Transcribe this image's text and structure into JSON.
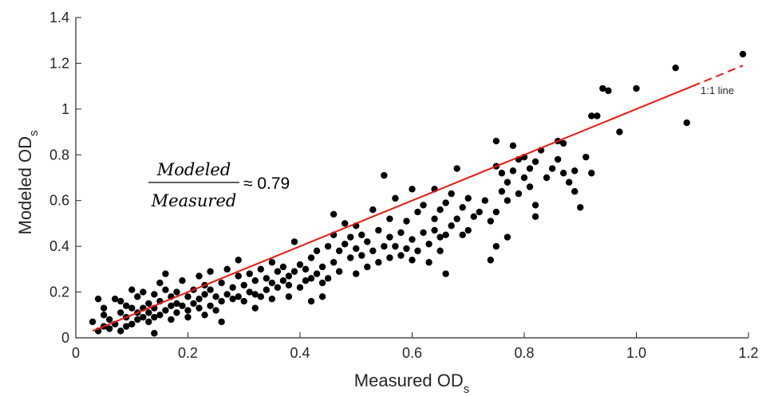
{
  "chart_data": {
    "type": "scatter",
    "xlabel": "Measured OD",
    "xlabel_subscript": "s",
    "ylabel": "Modeled OD",
    "ylabel_subscript": "s",
    "xlim": [
      0,
      1.2
    ],
    "ylim": [
      0,
      1.4
    ],
    "x_ticks": [
      0,
      0.2,
      0.4,
      0.6,
      0.8,
      1.0,
      1.2
    ],
    "x_tick_labels": [
      "0",
      "0.2",
      "0.4",
      "0.6",
      "0.8",
      "1.0",
      "1.2"
    ],
    "y_ticks": [
      0,
      0.2,
      0.4,
      0.6,
      0.8,
      1.0,
      1.2,
      1.4
    ],
    "y_tick_labels": [
      "0",
      "0.2",
      "0.4",
      "0.6",
      "0.8",
      "1",
      "1.2",
      "1.4"
    ],
    "grid": false,
    "marker_color": "#000000",
    "fit_line": {
      "label": "1:1 line",
      "color": "#e8190f",
      "solid_x": [
        0.03,
        1.1
      ],
      "dashed_x": [
        1.1,
        1.19
      ],
      "slope": 1.0,
      "intercept": 0.0
    },
    "annotation": {
      "numerator": "Modeled",
      "denominator": "Measured",
      "relation": "≈ 0.79"
    },
    "points": [
      [
        0.03,
        0.07
      ],
      [
        0.04,
        0.03
      ],
      [
        0.04,
        0.17
      ],
      [
        0.05,
        0.05
      ],
      [
        0.05,
        0.1
      ],
      [
        0.05,
        0.13
      ],
      [
        0.06,
        0.04
      ],
      [
        0.06,
        0.08
      ],
      [
        0.07,
        0.06
      ],
      [
        0.07,
        0.17
      ],
      [
        0.08,
        0.03
      ],
      [
        0.08,
        0.11
      ],
      [
        0.08,
        0.16
      ],
      [
        0.09,
        0.05
      ],
      [
        0.09,
        0.09
      ],
      [
        0.09,
        0.14
      ],
      [
        0.1,
        0.06
      ],
      [
        0.1,
        0.13
      ],
      [
        0.1,
        0.21
      ],
      [
        0.11,
        0.08
      ],
      [
        0.11,
        0.11
      ],
      [
        0.11,
        0.18
      ],
      [
        0.12,
        0.13
      ],
      [
        0.12,
        0.2
      ],
      [
        0.12,
        0.09
      ],
      [
        0.13,
        0.07
      ],
      [
        0.13,
        0.15
      ],
      [
        0.13,
        0.11
      ],
      [
        0.14,
        0.02
      ],
      [
        0.14,
        0.09
      ],
      [
        0.14,
        0.13
      ],
      [
        0.14,
        0.19
      ],
      [
        0.15,
        0.1
      ],
      [
        0.15,
        0.16
      ],
      [
        0.15,
        0.24
      ],
      [
        0.16,
        0.12
      ],
      [
        0.16,
        0.21
      ],
      [
        0.16,
        0.28
      ],
      [
        0.17,
        0.08
      ],
      [
        0.17,
        0.14
      ],
      [
        0.17,
        0.18
      ],
      [
        0.18,
        0.11
      ],
      [
        0.18,
        0.15
      ],
      [
        0.18,
        0.2
      ],
      [
        0.19,
        0.14
      ],
      [
        0.19,
        0.25
      ],
      [
        0.2,
        0.09
      ],
      [
        0.2,
        0.12
      ],
      [
        0.2,
        0.18
      ],
      [
        0.21,
        0.15
      ],
      [
        0.21,
        0.21
      ],
      [
        0.22,
        0.13
      ],
      [
        0.22,
        0.17
      ],
      [
        0.22,
        0.27
      ],
      [
        0.23,
        0.1
      ],
      [
        0.23,
        0.19
      ],
      [
        0.23,
        0.23
      ],
      [
        0.24,
        0.14
      ],
      [
        0.24,
        0.21
      ],
      [
        0.24,
        0.29
      ],
      [
        0.25,
        0.12
      ],
      [
        0.25,
        0.18
      ],
      [
        0.26,
        0.07
      ],
      [
        0.26,
        0.16
      ],
      [
        0.26,
        0.24
      ],
      [
        0.27,
        0.19
      ],
      [
        0.27,
        0.3
      ],
      [
        0.28,
        0.17
      ],
      [
        0.28,
        0.22
      ],
      [
        0.29,
        0.18
      ],
      [
        0.29,
        0.27
      ],
      [
        0.29,
        0.34
      ],
      [
        0.3,
        0.16
      ],
      [
        0.3,
        0.23
      ],
      [
        0.31,
        0.2
      ],
      [
        0.31,
        0.28
      ],
      [
        0.32,
        0.13
      ],
      [
        0.32,
        0.19
      ],
      [
        0.32,
        0.25
      ],
      [
        0.33,
        0.18
      ],
      [
        0.33,
        0.3
      ],
      [
        0.34,
        0.21
      ],
      [
        0.34,
        0.26
      ],
      [
        0.35,
        0.17
      ],
      [
        0.35,
        0.24
      ],
      [
        0.35,
        0.33
      ],
      [
        0.36,
        0.22
      ],
      [
        0.36,
        0.29
      ],
      [
        0.37,
        0.25
      ],
      [
        0.37,
        0.31
      ],
      [
        0.38,
        0.18
      ],
      [
        0.38,
        0.23
      ],
      [
        0.38,
        0.27
      ],
      [
        0.39,
        0.29
      ],
      [
        0.39,
        0.42
      ],
      [
        0.4,
        0.22
      ],
      [
        0.4,
        0.32
      ],
      [
        0.41,
        0.25
      ],
      [
        0.41,
        0.3
      ],
      [
        0.42,
        0.16
      ],
      [
        0.42,
        0.26
      ],
      [
        0.42,
        0.35
      ],
      [
        0.43,
        0.28
      ],
      [
        0.43,
        0.38
      ],
      [
        0.44,
        0.18
      ],
      [
        0.44,
        0.24
      ],
      [
        0.44,
        0.31
      ],
      [
        0.45,
        0.26
      ],
      [
        0.45,
        0.4
      ],
      [
        0.46,
        0.33
      ],
      [
        0.46,
        0.45
      ],
      [
        0.46,
        0.54
      ],
      [
        0.47,
        0.29
      ],
      [
        0.47,
        0.38
      ],
      [
        0.48,
        0.41
      ],
      [
        0.48,
        0.5
      ],
      [
        0.49,
        0.35
      ],
      [
        0.49,
        0.44
      ],
      [
        0.5,
        0.28
      ],
      [
        0.5,
        0.39
      ],
      [
        0.5,
        0.49
      ],
      [
        0.51,
        0.36
      ],
      [
        0.51,
        0.45
      ],
      [
        0.52,
        0.31
      ],
      [
        0.52,
        0.42
      ],
      [
        0.53,
        0.38
      ],
      [
        0.53,
        0.56
      ],
      [
        0.54,
        0.33
      ],
      [
        0.54,
        0.47
      ],
      [
        0.55,
        0.4
      ],
      [
        0.55,
        0.71
      ],
      [
        0.56,
        0.35
      ],
      [
        0.56,
        0.44
      ],
      [
        0.56,
        0.52
      ],
      [
        0.57,
        0.4
      ],
      [
        0.57,
        0.61
      ],
      [
        0.58,
        0.36
      ],
      [
        0.58,
        0.46
      ],
      [
        0.59,
        0.39
      ],
      [
        0.59,
        0.51
      ],
      [
        0.6,
        0.34
      ],
      [
        0.6,
        0.43
      ],
      [
        0.6,
        0.65
      ],
      [
        0.61,
        0.38
      ],
      [
        0.61,
        0.55
      ],
      [
        0.62,
        0.46
      ],
      [
        0.62,
        0.58
      ],
      [
        0.63,
        0.41
      ],
      [
        0.63,
        0.33
      ],
      [
        0.64,
        0.47
      ],
      [
        0.64,
        0.52
      ],
      [
        0.64,
        0.65
      ],
      [
        0.65,
        0.38
      ],
      [
        0.65,
        0.44
      ],
      [
        0.65,
        0.56
      ],
      [
        0.66,
        0.28
      ],
      [
        0.66,
        0.45
      ],
      [
        0.66,
        0.59
      ],
      [
        0.67,
        0.49
      ],
      [
        0.67,
        0.63
      ],
      [
        0.68,
        0.52
      ],
      [
        0.68,
        0.74
      ],
      [
        0.69,
        0.45
      ],
      [
        0.69,
        0.57
      ],
      [
        0.7,
        0.47
      ],
      [
        0.7,
        0.61
      ],
      [
        0.71,
        0.53
      ],
      [
        0.72,
        0.55
      ],
      [
        0.73,
        0.6
      ],
      [
        0.74,
        0.34
      ],
      [
        0.74,
        0.51
      ],
      [
        0.75,
        0.4
      ],
      [
        0.75,
        0.55
      ],
      [
        0.75,
        0.75
      ],
      [
        0.75,
        0.86
      ],
      [
        0.76,
        0.64
      ],
      [
        0.76,
        0.72
      ],
      [
        0.77,
        0.44
      ],
      [
        0.77,
        0.6
      ],
      [
        0.77,
        0.68
      ],
      [
        0.78,
        0.73
      ],
      [
        0.78,
        0.84
      ],
      [
        0.79,
        0.63
      ],
      [
        0.79,
        0.78
      ],
      [
        0.8,
        0.7
      ],
      [
        0.8,
        0.79
      ],
      [
        0.81,
        0.66
      ],
      [
        0.81,
        0.74
      ],
      [
        0.82,
        0.53
      ],
      [
        0.82,
        0.58
      ],
      [
        0.82,
        0.77
      ],
      [
        0.83,
        0.82
      ],
      [
        0.84,
        0.7
      ],
      [
        0.85,
        0.74
      ],
      [
        0.86,
        0.78
      ],
      [
        0.86,
        0.86
      ],
      [
        0.87,
        0.72
      ],
      [
        0.87,
        0.85
      ],
      [
        0.88,
        0.68
      ],
      [
        0.89,
        0.64
      ],
      [
        0.89,
        0.73
      ],
      [
        0.9,
        0.57
      ],
      [
        0.91,
        0.79
      ],
      [
        0.92,
        0.72
      ],
      [
        0.92,
        0.97
      ],
      [
        0.93,
        0.97
      ],
      [
        0.94,
        1.09
      ],
      [
        0.95,
        1.08
      ],
      [
        0.97,
        0.9
      ],
      [
        1.0,
        1.09
      ],
      [
        1.07,
        1.18
      ],
      [
        1.09,
        0.94
      ],
      [
        1.19,
        1.24
      ]
    ]
  }
}
